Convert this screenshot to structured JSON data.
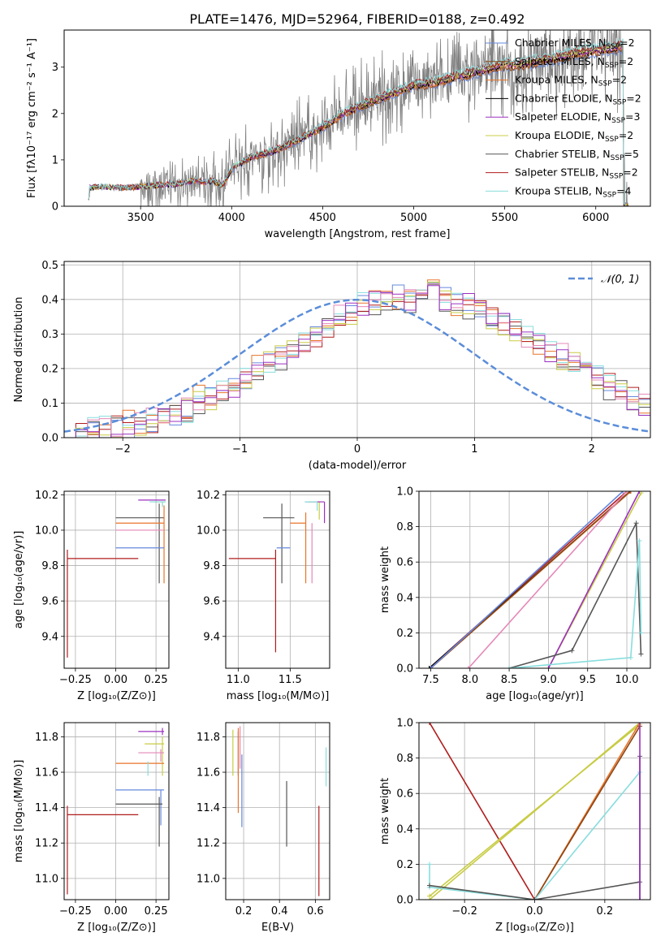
{
  "figure": {
    "title": "PLATE=1476, MJD=52964, FIBERID=0188, z=0.492"
  },
  "colors": {
    "chabrier_miles": "#6688dd",
    "salpeter_miles": "#8B4513",
    "kroupa_miles": "#e8742a",
    "chabrier_elodie": "#000000",
    "salpeter_elodie": "#9b30c0",
    "kroupa_elodie": "#c8cc44",
    "chabrier_stelib": "#555555",
    "salpeter_stelib": "#b01c1c",
    "kroupa_stelib": "#88dddd",
    "data": "#808080",
    "pink": "#e588b8"
  },
  "chart_data": [
    {
      "id": "spectrum",
      "type": "line",
      "title": "PLATE=1476, MJD=52964, FIBERID=0188, z=0.492",
      "xlabel": "wavelength [Angstrom, rest frame]",
      "ylabel": "Flux [fλ10⁻¹⁷ erg cm⁻² s⁻¹ A⁻¹]",
      "xlim": [
        3080,
        6300
      ],
      "ylim": [
        0,
        3.8
      ],
      "xticks": [
        "3500",
        "4000",
        "4500",
        "5000",
        "5500",
        "6000"
      ],
      "yticks": [
        "0",
        "1",
        "2",
        "3"
      ],
      "legend_position": "top-right",
      "series": [
        {
          "name": "Chabrier MILES, N_SSP=2",
          "label": "Chabrier MILES, N",
          "sub": "SSP",
          "suffix": "=2",
          "color": "#6688dd"
        },
        {
          "name": "Salpeter MILES, N_SSP=2",
          "label": "Salpeter MILES, N",
          "sub": "SSP",
          "suffix": "=2",
          "color": "#8B4513"
        },
        {
          "name": "Kroupa MILES, N_SSP=2",
          "label": "Kroupa MILES, N",
          "sub": "SSP",
          "suffix": "=2",
          "color": "#e8742a"
        },
        {
          "name": "Chabrier ELODIE, N_SSP=2",
          "label": "Chabrier ELODIE, N",
          "sub": "SSP",
          "suffix": "=2",
          "color": "#000000"
        },
        {
          "name": "Salpeter ELODIE, N_SSP=3",
          "label": "Salpeter ELODIE, N",
          "sub": "SSP",
          "suffix": "=3",
          "color": "#9b30c0"
        },
        {
          "name": "Kroupa ELODIE, N_SSP=2",
          "label": "Kroupa ELODIE, N",
          "sub": "SSP",
          "suffix": "=2",
          "color": "#c8cc44"
        },
        {
          "name": "Chabrier STELIB, N_SSP=5",
          "label": "Chabrier STELIB, N",
          "sub": "SSP",
          "suffix": "=5",
          "color": "#555555"
        },
        {
          "name": "Salpeter STELIB, N_SSP=2",
          "label": "Salpeter STELIB, N",
          "sub": "SSP",
          "suffix": "=2",
          "color": "#b01c1c"
        },
        {
          "name": "Kroupa STELIB, N_SSP=4",
          "label": "Kroupa STELIB, N",
          "sub": "SSP",
          "suffix": "=4",
          "color": "#88dddd"
        }
      ],
      "continuum": [
        [
          3210,
          0.0
        ],
        [
          3220,
          0.4
        ],
        [
          3300,
          0.42
        ],
        [
          3400,
          0.4
        ],
        [
          3500,
          0.42
        ],
        [
          3600,
          0.46
        ],
        [
          3700,
          0.48
        ],
        [
          3800,
          0.55
        ],
        [
          3850,
          0.52
        ],
        [
          3900,
          0.55
        ],
        [
          3950,
          0.45
        ],
        [
          4000,
          0.8
        ],
        [
          4100,
          1.05
        ],
        [
          4200,
          1.15
        ],
        [
          4300,
          1.3
        ],
        [
          4400,
          1.5
        ],
        [
          4500,
          1.7
        ],
        [
          4600,
          1.95
        ],
        [
          4700,
          2.15
        ],
        [
          4800,
          2.3
        ],
        [
          4900,
          2.45
        ],
        [
          5000,
          2.6
        ],
        [
          5100,
          2.65
        ],
        [
          5200,
          2.75
        ],
        [
          5300,
          2.85
        ],
        [
          5400,
          2.95
        ],
        [
          5500,
          3.05
        ],
        [
          5600,
          3.05
        ],
        [
          5700,
          3.15
        ],
        [
          5800,
          3.2
        ],
        [
          5900,
          3.3
        ],
        [
          6000,
          3.35
        ],
        [
          6100,
          3.4
        ],
        [
          6150,
          3.45
        ]
      ]
    },
    {
      "id": "residuals",
      "type": "area",
      "xlabel": "(data-model)/error",
      "ylabel": "Normed distribution",
      "xlim": [
        -2.5,
        2.5
      ],
      "ylim": [
        0,
        0.51
      ],
      "xticks": [
        "−2",
        "−1",
        "0",
        "1",
        "2"
      ],
      "yticks": [
        "0.0",
        "0.1",
        "0.2",
        "0.3",
        "0.4",
        "0.5"
      ],
      "legend": "𝒩(0, 1)",
      "legend_position": "top-right",
      "bin_width": 0.1,
      "bin_start": -2.5,
      "histogram": [
        0.01,
        0.01,
        0.02,
        0.02,
        0.03,
        0.03,
        0.04,
        0.05,
        0.06,
        0.07,
        0.08,
        0.1,
        0.12,
        0.13,
        0.15,
        0.17,
        0.2,
        0.22,
        0.24,
        0.25,
        0.28,
        0.3,
        0.32,
        0.34,
        0.36,
        0.38,
        0.39,
        0.4,
        0.41,
        0.4,
        0.41,
        0.42,
        0.4,
        0.39,
        0.38,
        0.37,
        0.35,
        0.33,
        0.31,
        0.29,
        0.27,
        0.25,
        0.23,
        0.21,
        0.19,
        0.17,
        0.15,
        0.13,
        0.11,
        0.09
      ],
      "histogram_series": [
        {
          "color": "#6688dd",
          "offset": 0.0
        },
        {
          "color": "#e8742a",
          "offset": 0.03
        },
        {
          "color": "#555555",
          "offset": -0.02
        },
        {
          "color": "#b01c1c",
          "offset": 0.01
        },
        {
          "color": "#88dddd",
          "offset": 0.02
        },
        {
          "color": "#c8cc44",
          "offset": -0.01
        },
        {
          "color": "#e588b8",
          "offset": 0.015
        },
        {
          "color": "#9b30c0",
          "offset": -0.015
        }
      ]
    },
    {
      "id": "age_vs_Z",
      "type": "scatter",
      "xlabel": "Z [log₁₀(Z/Z⊙)]",
      "ylabel": "age  [log₁₀(age/yr)]",
      "xlim": [
        -0.32,
        0.33
      ],
      "ylim": [
        9.22,
        10.22
      ],
      "xticks": [
        "−0.25",
        "0.00",
        "0.25"
      ],
      "yticks": [
        "9.4",
        "9.6",
        "9.8",
        "10.0",
        "10.2"
      ],
      "points": [
        {
          "x": 0.29,
          "y": 10.16,
          "xl": 0.05,
          "xr": 0.02,
          "yl": 0.02,
          "yu": 0.0,
          "color": "#c8cc44"
        },
        {
          "x": 0.29,
          "y": 10.17,
          "xl": 0.15,
          "xr": 0.02,
          "yl": 0.0,
          "yu": 0.0,
          "color": "#9b30c0"
        },
        {
          "x": 0.29,
          "y": 10.16,
          "xl": 0.08,
          "xr": 0.02,
          "yl": 0.03,
          "yu": 0.0,
          "color": "#88dddd"
        },
        {
          "x": 0.27,
          "y": 10.07,
          "xl": 0.27,
          "xr": 0.03,
          "yl": 0.37,
          "yu": 0.08,
          "color": "#555555"
        },
        {
          "x": 0.3,
          "y": 10.04,
          "xl": 0.3,
          "xr": 0.0,
          "yl": 0.34,
          "yu": 0.1,
          "color": "#e8742a"
        },
        {
          "x": 0.3,
          "y": 10.0,
          "xl": 0.3,
          "xr": 0.0,
          "yl": 0.0,
          "yu": 0.0,
          "color": "#e588b8"
        },
        {
          "x": 0.29,
          "y": 9.9,
          "xl": 0.29,
          "xr": 0.01,
          "yl": 0.0,
          "yu": 0.0,
          "color": "#6688dd"
        },
        {
          "x": -0.3,
          "y": 9.84,
          "xl": 0.0,
          "xr": 0.44,
          "yl": 0.56,
          "yu": 0.05,
          "color": "#b01c1c"
        }
      ]
    },
    {
      "id": "age_vs_mass",
      "type": "scatter",
      "xlabel": "mass [log₁₀(M/M⊙)]",
      "ylabel": "",
      "xlim": [
        10.88,
        11.88
      ],
      "ylim": [
        9.22,
        10.22
      ],
      "xticks": [
        "11.0",
        "11.5"
      ],
      "yticks": [
        "9.4",
        "9.6",
        "9.8",
        "10.0",
        "10.2"
      ],
      "points": [
        {
          "x": 11.78,
          "y": 10.16,
          "xl": 0.1,
          "xr": 0.02,
          "yl": 0.1,
          "yu": 0.0,
          "color": "#c8cc44"
        },
        {
          "x": 11.83,
          "y": 10.16,
          "xl": 0.18,
          "xr": 0.0,
          "yl": 0.12,
          "yu": 0.0,
          "color": "#9b30c0"
        },
        {
          "x": 11.76,
          "y": 10.16,
          "xl": 0.12,
          "xr": 0.0,
          "yl": 0.05,
          "yu": 0.0,
          "color": "#88dddd"
        },
        {
          "x": 11.42,
          "y": 10.07,
          "xl": 0.18,
          "xr": 0.12,
          "yl": 0.37,
          "yu": 0.08,
          "color": "#555555"
        },
        {
          "x": 11.65,
          "y": 10.04,
          "xl": 0.15,
          "xr": 0.0,
          "yl": 0.34,
          "yu": 0.06,
          "color": "#e8742a"
        },
        {
          "x": 11.71,
          "y": 10.0,
          "xl": 0.0,
          "xr": 0.0,
          "yl": 0.3,
          "yu": 0.04,
          "color": "#e588b8"
        },
        {
          "x": 11.5,
          "y": 9.9,
          "xl": 0.13,
          "xr": 0.0,
          "yl": 0.0,
          "yu": 0.0,
          "color": "#6688dd"
        },
        {
          "x": 11.36,
          "y": 9.84,
          "xl": 0.45,
          "xr": 0.0,
          "yl": 0.53,
          "yu": 0.05,
          "color": "#b01c1c"
        }
      ]
    },
    {
      "id": "weight_vs_age",
      "type": "line",
      "xlabel": "age  [log₁₀(age/yr)]",
      "ylabel": "mass weight",
      "xlim": [
        7.35,
        10.3
      ],
      "ylim": [
        0,
        1.0
      ],
      "xticks": [
        "7.5",
        "8.0",
        "8.5",
        "9.0",
        "9.5",
        "10.0"
      ],
      "yticks": [
        "0.0",
        "0.2",
        "0.4",
        "0.6",
        "0.8",
        "1.0"
      ],
      "series": [
        {
          "color": "#b01c1c",
          "x": [
            7.48,
            10.0
          ],
          "y": [
            0.0,
            1.0
          ]
        },
        {
          "color": "#000000",
          "x": [
            7.48,
            10.05
          ],
          "y": [
            0.0,
            1.0
          ]
        },
        {
          "color": "#e8742a",
          "x": [
            7.5,
            10.05
          ],
          "y": [
            0.0,
            1.0
          ]
        },
        {
          "color": "#8B4513",
          "x": [
            7.5,
            10.04
          ],
          "y": [
            0.0,
            1.0
          ]
        },
        {
          "color": "#6688dd",
          "x": [
            7.5,
            9.95
          ],
          "y": [
            0.0,
            1.0
          ]
        },
        {
          "color": "#e588b8",
          "x": [
            7.98,
            10.0
          ],
          "y": [
            0.0,
            1.0
          ]
        },
        {
          "color": "#c8cc44",
          "x": [
            9.0,
            10.18
          ],
          "y": [
            0.0,
            0.99
          ]
        },
        {
          "color": "#9b30c0",
          "x": [
            9.0,
            10.16
          ],
          "y": [
            0.0,
            1.0
          ]
        },
        {
          "color": "#555555",
          "x": [
            8.5,
            9.3,
            10.12,
            10.18
          ],
          "y": [
            0.0,
            0.1,
            0.82,
            0.08
          ]
        },
        {
          "color": "#88dddd",
          "x": [
            8.5,
            10.05,
            10.16,
            10.18
          ],
          "y": [
            0.0,
            0.06,
            0.72,
            0.2
          ]
        }
      ]
    },
    {
      "id": "mass_vs_Z",
      "type": "scatter",
      "xlabel": "Z [log₁₀(Z/Z⊙)]",
      "ylabel": "mass [log₁₀(M/M⊙)]",
      "xlim": [
        -0.32,
        0.33
      ],
      "ylim": [
        10.88,
        11.88
      ],
      "xticks": [
        "−0.25",
        "0.00",
        "0.25"
      ],
      "yticks": [
        "11.0",
        "11.2",
        "11.4",
        "11.6",
        "11.8"
      ],
      "points": [
        {
          "x": 0.29,
          "y": 11.83,
          "xl": 0.15,
          "xr": 0.01,
          "yl": 0.02,
          "yu": 0.02,
          "color": "#9b30c0"
        },
        {
          "x": 0.29,
          "y": 11.76,
          "xl": 0.11,
          "xr": 0.01,
          "yl": 0.18,
          "yu": 0.04,
          "color": "#c8cc44"
        },
        {
          "x": 0.28,
          "y": 11.71,
          "xl": 0.14,
          "xr": 0.02,
          "yl": 0.05,
          "yu": 0.02,
          "color": "#e588b8"
        },
        {
          "x": 0.28,
          "y": 11.65,
          "xl": 0.28,
          "xr": 0.02,
          "yl": 0.0,
          "yu": 0.0,
          "color": "#e8742a"
        },
        {
          "x": 0.2,
          "y": 11.62,
          "xl": 0.0,
          "xr": 0.0,
          "yl": 0.04,
          "yu": 0.04,
          "color": "#88dddd"
        },
        {
          "x": 0.28,
          "y": 11.5,
          "xl": 0.28,
          "xr": 0.02,
          "yl": 0.2,
          "yu": 0.0,
          "color": "#6688dd"
        },
        {
          "x": 0.27,
          "y": 11.42,
          "xl": 0.27,
          "xr": 0.02,
          "yl": 0.24,
          "yu": 0.04,
          "color": "#555555"
        },
        {
          "x": -0.3,
          "y": 11.36,
          "xl": 0.0,
          "xr": 0.44,
          "yl": 0.45,
          "yu": 0.05,
          "color": "#b01c1c"
        }
      ]
    },
    {
      "id": "mass_vs_ebv",
      "type": "scatter",
      "xlabel": "E(B-V)",
      "ylabel": "",
      "xlim": [
        0.1,
        0.68
      ],
      "ylim": [
        10.88,
        11.88
      ],
      "xticks": [
        "0.2",
        "0.4",
        "0.6"
      ],
      "yticks": [
        "11.0",
        "11.2",
        "11.4",
        "11.6",
        "11.8"
      ],
      "bars": [
        {
          "x": 0.14,
          "y0": 11.58,
          "y1": 11.84,
          "color": "#c8cc44"
        },
        {
          "x": 0.17,
          "y0": 11.58,
          "y1": 11.83,
          "color": "#555555"
        },
        {
          "x": 0.17,
          "y0": 11.37,
          "y1": 11.85,
          "color": "#e8742a"
        },
        {
          "x": 0.18,
          "y0": 11.62,
          "y1": 11.86,
          "color": "#e588b8"
        },
        {
          "x": 0.19,
          "y0": 11.29,
          "y1": 11.7,
          "color": "#6688dd"
        },
        {
          "x": 0.44,
          "y0": 11.18,
          "y1": 11.55,
          "color": "#555555"
        },
        {
          "x": 0.62,
          "y0": 10.9,
          "y1": 11.41,
          "color": "#b01c1c"
        },
        {
          "x": 0.66,
          "y0": 11.52,
          "y1": 11.74,
          "color": "#88dddd"
        }
      ]
    },
    {
      "id": "weight_vs_Z",
      "type": "line",
      "xlabel": "Z [log₁₀(Z/Z⊙)]",
      "ylabel": "mass weight",
      "xlim": [
        -0.33,
        0.33
      ],
      "ylim": [
        0,
        1.0
      ],
      "xticks": [
        "−0.2",
        "0.0",
        "0.2"
      ],
      "yticks": [
        "0.0",
        "0.2",
        "0.4",
        "0.6",
        "0.8",
        "1.0"
      ],
      "series": [
        {
          "color": "#b01c1c",
          "x": [
            -0.3,
            0.0
          ],
          "y": [
            1.0,
            0.0
          ]
        },
        {
          "color": "#c8cc44",
          "x": [
            -0.3,
            0.3
          ],
          "y": [
            0.0,
            1.0
          ]
        },
        {
          "color": "#c8cc44",
          "x": [
            -0.3,
            0.3
          ],
          "y": [
            0.02,
            0.99
          ]
        },
        {
          "color": "#e8742a",
          "x": [
            0.0,
            0.3
          ],
          "y": [
            0.0,
            1.0
          ]
        },
        {
          "color": "#8B4513",
          "x": [
            0.0,
            0.3
          ],
          "y": [
            0.0,
            0.98
          ]
        },
        {
          "color": "#88dddd",
          "x": [
            -0.3,
            -0.3,
            0.0,
            0.3,
            0.3
          ],
          "y": [
            0.2,
            0.07,
            0.0,
            0.72,
            0.0
          ]
        },
        {
          "color": "#555555",
          "x": [
            -0.3,
            0.0,
            0.3,
            0.3,
            0.3
          ],
          "y": [
            0.08,
            0.0,
            0.1,
            0.81,
            0.0
          ]
        },
        {
          "color": "#9b30c0",
          "x": [
            0.3,
            0.3
          ],
          "y": [
            0.0,
            1.0
          ]
        }
      ]
    }
  ]
}
